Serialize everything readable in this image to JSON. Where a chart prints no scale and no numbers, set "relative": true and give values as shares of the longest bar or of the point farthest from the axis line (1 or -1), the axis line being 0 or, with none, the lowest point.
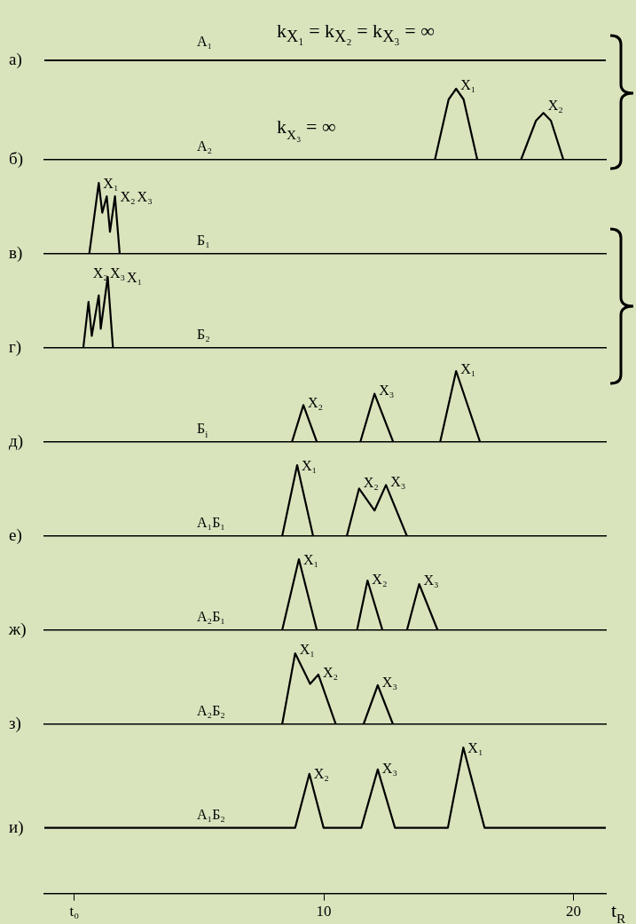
{
  "chart_data": [
    {
      "type": "other",
      "title": "а)",
      "annotations": [
        "A₁",
        "k$_{X₁}$ = k$_{X₂}$ = k$_{X₃}$ = ∞"
      ]
    },
    {
      "type": "line",
      "relative": true,
      "title": "б)",
      "color": "#000000",
      "tick_labels": false,
      "xlim": [
        -1.2,
        21.3
      ],
      "annotations": [
        "A₂",
        "k$_{X₃}$ = ∞",
        {
          "text": "X₁",
          "x": 15.3,
          "y": 1
        },
        {
          "text": "X₂",
          "x": 18.8,
          "y": 0.66
        }
      ],
      "x": [
        -1.2,
        14.45,
        15.0,
        15.3,
        15.6,
        16.15,
        17.9,
        18.5,
        18.8,
        19.1,
        19.6,
        21.3
      ],
      "values": [
        0,
        0,
        0.85,
        1,
        0.85,
        0,
        0,
        0.55,
        0.66,
        0.55,
        0,
        0
      ]
    },
    {
      "type": "line",
      "relative": true,
      "title": "в)",
      "color": "#000000",
      "tick_labels": false,
      "xlim": [
        -1.2,
        21.3
      ],
      "annotations": [
        "Б₁",
        {
          "text": "X₁",
          "x": 0.98,
          "y": 1
        },
        {
          "text": "X₂",
          "x": 1.3,
          "y": 0.81
        },
        {
          "text": "X₃",
          "x": 1.63,
          "y": 0.81
        }
      ],
      "x": [
        -1.2,
        0.6,
        0.98,
        1.12,
        1.3,
        1.43,
        1.63,
        1.82,
        21.3
      ],
      "values": [
        0,
        0,
        1,
        0.58,
        0.81,
        0.31,
        0.81,
        0,
        0
      ]
    },
    {
      "type": "line",
      "relative": true,
      "title": "г)",
      "color": "#000000",
      "tick_labels": false,
      "xlim": [
        -1.2,
        21.3
      ],
      "annotations": [
        "Б₂",
        {
          "text": "X₂",
          "x": 0.57,
          "y": 0.65
        },
        {
          "text": "X₃",
          "x": 0.98,
          "y": 0.74
        },
        {
          "text": "X₁",
          "x": 1.34,
          "y": 1
        }
      ],
      "x": [
        -1.2,
        0.36,
        0.57,
        0.7,
        0.98,
        1.06,
        1.34,
        1.55,
        21.3
      ],
      "values": [
        0,
        0,
        0.65,
        0.17,
        0.74,
        0.27,
        1,
        0,
        0
      ]
    },
    {
      "type": "line",
      "relative": true,
      "title": "д)",
      "color": "#000000",
      "tick_labels": false,
      "xlim": [
        -1.2,
        21.3
      ],
      "annotations": [
        "Б$_{i}$",
        {
          "text": "X₂",
          "x": 9.18,
          "y": 0.52
        },
        {
          "text": "X₃",
          "x": 12.03,
          "y": 0.68
        },
        {
          "text": "X₁",
          "x": 15.3,
          "y": 1
        }
      ],
      "x": [
        -1.2,
        8.72,
        9.18,
        9.72,
        11.46,
        12.03,
        12.78,
        14.66,
        15.3,
        16.26,
        21.3
      ],
      "values": [
        0,
        0,
        0.52,
        0,
        0,
        0.68,
        0,
        0,
        1,
        0,
        0
      ]
    },
    {
      "type": "line",
      "relative": true,
      "title": "е)",
      "color": "#000000",
      "tick_labels": false,
      "xlim": [
        -1.2,
        21.3
      ],
      "annotations": [
        "A₁Б₁",
        {
          "text": "X₁",
          "x": 8.93,
          "y": 1
        },
        {
          "text": "X₂",
          "x": 11.41,
          "y": 0.67
        },
        {
          "text": "X₃",
          "x": 12.49,
          "y": 0.72
        }
      ],
      "x": [
        -1.2,
        8.33,
        8.93,
        9.57,
        10.92,
        11.41,
        12.03,
        12.49,
        13.33,
        21.3
      ],
      "values": [
        0,
        0,
        1,
        0,
        0,
        0.67,
        0.36,
        0.72,
        0,
        0
      ]
    },
    {
      "type": "line",
      "relative": true,
      "title": "ж)",
      "color": "#000000",
      "tick_labels": false,
      "xlim": [
        -1.2,
        21.3
      ],
      "annotations": [
        "A₂Б₁",
        {
          "text": "X₁",
          "x": 9.0,
          "y": 1
        },
        {
          "text": "X₂",
          "x": 11.75,
          "y": 0.7
        },
        {
          "text": "X₃",
          "x": 13.82,
          "y": 0.65
        }
      ],
      "x": [
        -1.2,
        8.33,
        9.0,
        9.72,
        11.33,
        11.75,
        12.35,
        13.33,
        13.82,
        14.56,
        21.3
      ],
      "values": [
        0,
        0,
        1,
        0,
        0,
        0.7,
        0,
        0,
        0.65,
        0,
        0
      ]
    },
    {
      "type": "line",
      "relative": true,
      "title": "з)",
      "color": "#000000",
      "tick_labels": false,
      "xlim": [
        -1.2,
        21.3
      ],
      "annotations": [
        "A₂Б₂",
        {
          "text": "X₁",
          "x": 8.85,
          "y": 1
        },
        {
          "text": "X₂",
          "x": 9.78,
          "y": 0.7
        },
        {
          "text": "X₃",
          "x": 12.16,
          "y": 0.55
        }
      ],
      "x": [
        -1.2,
        8.33,
        8.85,
        9.45,
        9.78,
        10.48,
        11.59,
        12.16,
        12.77,
        21.3
      ],
      "values": [
        0,
        0,
        1,
        0.57,
        0.7,
        0,
        0,
        0.55,
        0,
        0
      ]
    },
    {
      "type": "line",
      "relative": true,
      "title": "и)",
      "color": "#000000",
      "xlim": [
        -1.2,
        21.3
      ],
      "xticks": [
        {
          "value": 0,
          "label": "t₀"
        },
        10,
        20
      ],
      "xlabel": "t$_{R}$",
      "annotations": [
        "A₁Б₂",
        {
          "text": "X₂",
          "x": 9.42,
          "y": 0.82
        },
        {
          "text": "X₃",
          "x": 12.16,
          "y": 0.85
        },
        {
          "text": "X₁",
          "x": 15.59,
          "y": 1
        }
      ],
      "x": [
        -1.2,
        8.85,
        9.42,
        9.99,
        11.5,
        12.16,
        12.85,
        14.97,
        15.59,
        16.44,
        21.3
      ],
      "values": [
        0.45,
        0.45,
        0.82,
        0.45,
        0.45,
        0.85,
        0.45,
        0.45,
        1,
        0.45,
        0.45
      ]
    }
  ]
}
